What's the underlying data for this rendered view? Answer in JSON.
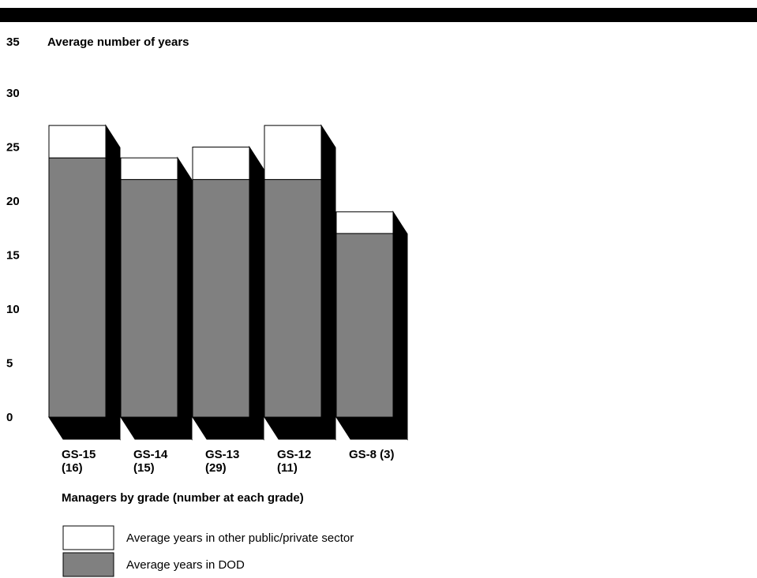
{
  "chart_data": {
    "type": "bar",
    "stacked": true,
    "three_d": true,
    "ylabel": "Average number of years",
    "xlabel": "Managers by grade (number at each grade)",
    "ylim": [
      0,
      35
    ],
    "yticks": [
      35,
      30,
      25,
      20,
      15,
      10,
      5,
      0
    ],
    "categories": [
      [
        "GS-15",
        "(16)"
      ],
      [
        "GS-14",
        "(15)"
      ],
      [
        "GS-13",
        "(29)"
      ],
      [
        "GS-12",
        "(11)"
      ],
      [
        "GS-8 (3)"
      ]
    ],
    "series": [
      {
        "name": "Average years in DOD",
        "color": "#808080",
        "values": [
          24,
          22,
          22,
          22,
          17
        ]
      },
      {
        "name": "Average years in other public/private sector",
        "color": "#ffffff",
        "values": [
          3,
          2,
          3,
          5,
          2
        ]
      }
    ],
    "legend": {
      "placement": "bottom-left",
      "items": [
        {
          "label": "Average years in other public/private sector",
          "color": "#ffffff"
        },
        {
          "label": "Average years in DOD",
          "color": "#808080"
        }
      ]
    },
    "grid": false
  }
}
